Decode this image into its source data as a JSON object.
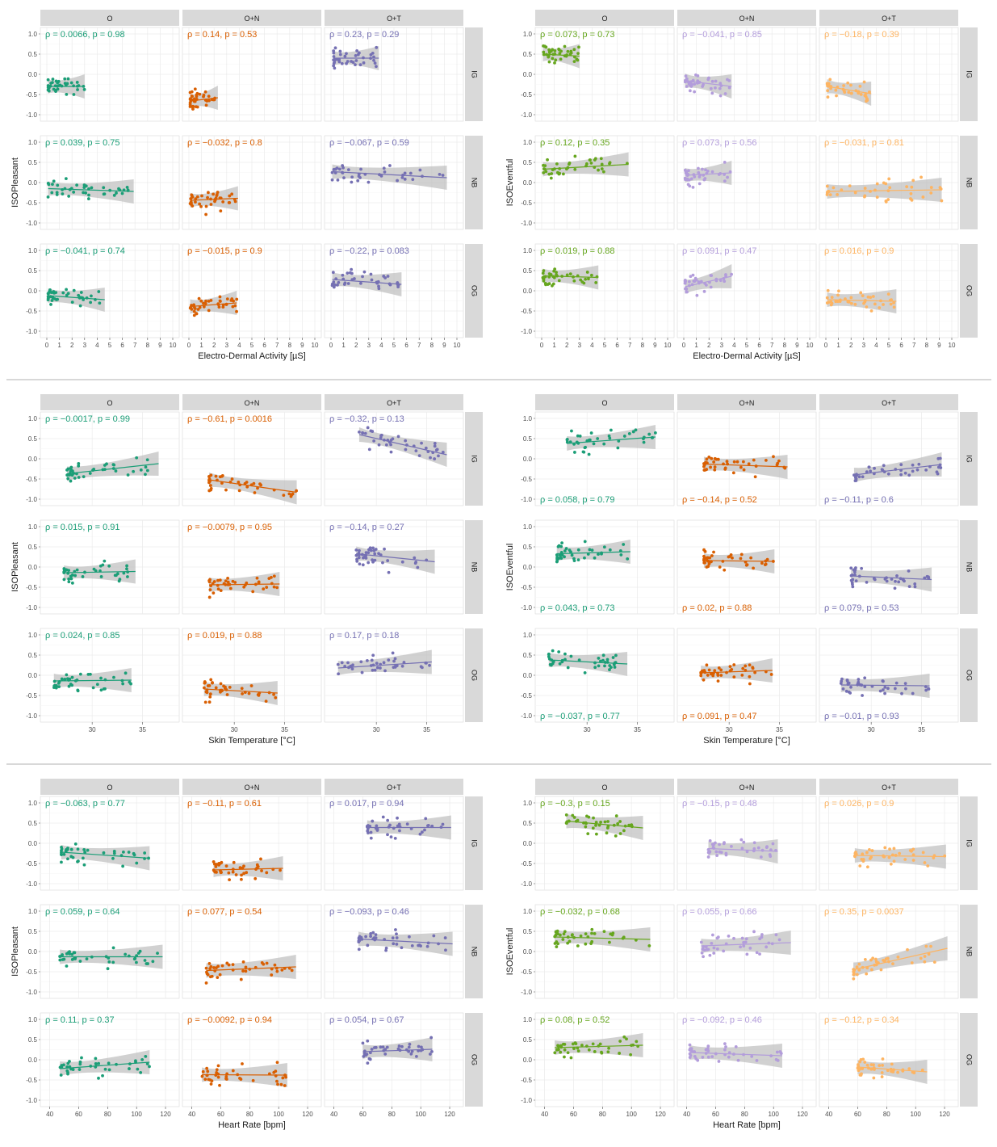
{
  "strip_columns": [
    "O",
    "O+N",
    "O+T"
  ],
  "strip_rows": [
    "IG",
    "NB",
    "OG"
  ],
  "panel_names": [
    "eda-pleasant",
    "eda-eventful",
    "temp-pleasant",
    "temp-eventful",
    "hr-pleasant",
    "hr-eventful"
  ],
  "colors": {
    "pleasant": [
      "#1b9e77",
      "#d95f02",
      "#7570b3"
    ],
    "eventful_eda": [
      "#66a61e",
      "#b39ddb",
      "#fdb462"
    ],
    "eventful_temp": [
      "#1b9e77",
      "#d95f02",
      "#7570b3"
    ],
    "eventful_hr": [
      "#66a61e",
      "#b39ddb",
      "#fdb462"
    ],
    "strip_bg": "#d9d9d9",
    "band": "#bdbdbd"
  },
  "chart_data": [
    {
      "type": "scatter",
      "xlabel": "Electro-Dermal Activity [µS]",
      "ylabel": "ISOPleasant",
      "xlim": [
        0,
        10
      ],
      "xticks": [
        0,
        1,
        2,
        3,
        4,
        5,
        6,
        7,
        8,
        9,
        10
      ],
      "ylim": [
        -1,
        1
      ],
      "yticks": [
        "1.0",
        "0.5",
        "0.0",
        "-0.5",
        "-1.0"
      ],
      "annot_pos": "top",
      "stats": [
        [
          "ρ = 0.0066, p = 0.98",
          "ρ = 0.14, p = 0.53",
          "ρ = 0.23, p = 0.29"
        ],
        [
          "ρ = 0.039, p = 0.75",
          "ρ = −0.032, p = 0.8",
          "ρ = −0.067, p = 0.59"
        ],
        [
          "ρ = −0.041, p = 0.74",
          "ρ = −0.015, p = 0.9",
          "ρ = −0.22, p = 0.083"
        ]
      ],
      "fits": [
        [
          [
            0.1,
            -0.3,
            3.0,
            -0.3
          ],
          [
            0.1,
            -0.66,
            2.3,
            -0.58
          ],
          [
            0.2,
            0.4,
            3.8,
            0.4
          ]
        ],
        [
          [
            0.1,
            -0.15,
            6.9,
            -0.22
          ],
          [
            0.1,
            -0.44,
            3.9,
            -0.39
          ],
          [
            0.1,
            0.27,
            9.2,
            0.12
          ]
        ],
        [
          [
            0.1,
            -0.12,
            4.6,
            -0.22
          ],
          [
            0.1,
            -0.39,
            3.8,
            -0.3
          ],
          [
            0.1,
            0.28,
            5.6,
            0.16
          ]
        ]
      ]
    },
    {
      "type": "scatter",
      "xlabel": "Electro-Dermal Activity [µS]",
      "ylabel": "ISOEventful",
      "xlim": [
        0,
        10
      ],
      "xticks": [
        0,
        1,
        2,
        3,
        4,
        5,
        6,
        7,
        8,
        9,
        10
      ],
      "ylim": [
        -1,
        1
      ],
      "yticks": [
        "1.0",
        "0.5",
        "0.0",
        "-0.5",
        "-1.0"
      ],
      "annot_pos": "top",
      "stats": [
        [
          "ρ = 0.073, p = 0.73",
          "ρ = −0.041, p = 0.85",
          "ρ = −0.18, p = 0.39"
        ],
        [
          "ρ = 0.12, p = 0.35",
          "ρ = 0.073, p = 0.56",
          "ρ = −0.031, p = 0.81"
        ],
        [
          "ρ = 0.019, p = 0.88",
          "ρ = 0.091, p = 0.47",
          "ρ = 0.016, p = 0.9"
        ]
      ],
      "fits": [
        [
          [
            0.1,
            0.5,
            3.0,
            0.45
          ],
          [
            0.1,
            -0.16,
            3.8,
            -0.3
          ],
          [
            0.1,
            -0.3,
            3.6,
            -0.48
          ]
        ],
        [
          [
            0.1,
            0.33,
            6.9,
            0.45
          ],
          [
            0.1,
            0.18,
            3.8,
            0.24
          ],
          [
            0.1,
            -0.22,
            9.2,
            -0.18
          ]
        ],
        [
          [
            0.1,
            0.37,
            4.5,
            0.33
          ],
          [
            0.1,
            0.1,
            3.8,
            0.36
          ],
          [
            0.1,
            -0.22,
            5.6,
            -0.26
          ]
        ]
      ]
    },
    {
      "type": "scatter",
      "xlabel": "Skin Temperature [°C]",
      "ylabel": "ISOPleasant",
      "xlim": [
        25.5,
        38
      ],
      "xticks": [
        30,
        35
      ],
      "ylim": [
        -1,
        1
      ],
      "yticks": [
        "1.0",
        "0.5",
        "0.0",
        "-0.5",
        "-1.0"
      ],
      "annot_pos": "top",
      "stats": [
        [
          "ρ = −0.0017, p = 0.99",
          "ρ = −0.61, p = 0.0016",
          "ρ = −0.32, p = 0.13"
        ],
        [
          "ρ = 0.015, p = 0.91",
          "ρ = −0.0079, p = 0.95",
          "ρ = −0.14, p = 0.27"
        ],
        [
          "ρ = 0.024, p = 0.85",
          "ρ = 0.019, p = 0.88",
          "ρ = 0.17, p = 0.18"
        ]
      ],
      "fits": [
        [
          [
            27.5,
            -0.37,
            36.6,
            -0.12
          ],
          [
            27.5,
            -0.52,
            36.2,
            -0.83
          ],
          [
            28.3,
            0.6,
            37.0,
            0.1
          ]
        ],
        [
          [
            27.2,
            -0.14,
            34.3,
            -0.11
          ],
          [
            27.5,
            -0.44,
            34.5,
            -0.42
          ],
          [
            28.0,
            0.33,
            35.8,
            0.13
          ]
        ],
        [
          [
            26.2,
            -0.14,
            33.9,
            -0.12
          ],
          [
            27.0,
            -0.34,
            34.3,
            -0.44
          ],
          [
            26.2,
            0.18,
            35.5,
            0.33
          ]
        ]
      ]
    },
    {
      "type": "scatter",
      "xlabel": "Skin Temperature [°C]",
      "ylabel": "ISOEventful",
      "xlim": [
        25.5,
        38
      ],
      "xticks": [
        30,
        35
      ],
      "ylim": [
        -1,
        1
      ],
      "yticks": [
        "1.0",
        "0.5",
        "0.0",
        "-0.5",
        "-1.0"
      ],
      "annot_pos": "bottom",
      "stats": [
        [
          "ρ = 0.058, p = 0.79",
          "ρ = −0.14, p = 0.52",
          "ρ = −0.11, p = 0.6"
        ],
        [
          "ρ = 0.043, p = 0.73",
          "ρ = 0.02, p = 0.88",
          "ρ = 0.079, p = 0.53"
        ],
        [
          "ρ = −0.037, p = 0.77",
          "ρ = 0.091, p = 0.47",
          "ρ = −0.01, p = 0.93"
        ]
      ],
      "fits": [
        [
          [
            28.0,
            0.38,
            36.8,
            0.54
          ],
          [
            27.5,
            -0.13,
            35.8,
            -0.2
          ],
          [
            28.3,
            -0.4,
            37.0,
            -0.14
          ]
        ],
        [
          [
            27.0,
            0.33,
            34.3,
            0.38
          ],
          [
            27.5,
            0.16,
            34.5,
            0.14
          ],
          [
            28.0,
            -0.22,
            36.0,
            -0.31
          ]
        ],
        [
          [
            26.2,
            0.38,
            34.0,
            0.28
          ],
          [
            27.2,
            0.06,
            34.3,
            0.12
          ],
          [
            27.0,
            -0.24,
            35.8,
            -0.26
          ]
        ]
      ]
    },
    {
      "type": "scatter",
      "xlabel": "Heart Rate [bpm]",
      "ylabel": "ISOPleasant",
      "xlim": [
        38,
        125
      ],
      "xticks": [
        40,
        60,
        80,
        100,
        120
      ],
      "ylim": [
        -1,
        1
      ],
      "yticks": [
        "1.0",
        "0.5",
        "0.0",
        "-0.5",
        "-1.0"
      ],
      "annot_pos": "top",
      "stats": [
        [
          "ρ = −0.063, p = 0.77",
          "ρ = −0.11, p = 0.61",
          "ρ = 0.017, p = 0.94"
        ],
        [
          "ρ = 0.059, p = 0.64",
          "ρ = 0.077, p = 0.54",
          "ρ = −0.093, p = 0.46"
        ],
        [
          "ρ = 0.11, p = 0.37",
          "ρ = −0.0092, p = 0.94",
          "ρ = 0.054, p = 0.67"
        ]
      ],
      "fits": [
        [
          [
            48,
            -0.22,
            109,
            -0.37
          ],
          [
            55,
            -0.66,
            103,
            -0.62
          ],
          [
            63,
            0.39,
            121,
            0.39
          ]
        ],
        [
          [
            47,
            -0.13,
            118,
            -0.13
          ],
          [
            50,
            -0.47,
            112,
            -0.38
          ],
          [
            57,
            0.31,
            122,
            0.19
          ]
        ],
        [
          [
            47,
            -0.22,
            109,
            -0.06
          ],
          [
            47,
            -0.37,
            106,
            -0.38
          ],
          [
            60,
            0.2,
            108,
            0.26
          ]
        ]
      ]
    },
    {
      "type": "scatter",
      "xlabel": "Heart Rate [bpm]",
      "ylabel": "ISOEventful",
      "xlim": [
        38,
        125
      ],
      "xticks": [
        40,
        60,
        80,
        100,
        120
      ],
      "ylim": [
        -1,
        1
      ],
      "yticks": [
        "1.0",
        "0.5",
        "0.0",
        "-0.5",
        "-1.0"
      ],
      "annot_pos": "top",
      "stats": [
        [
          "ρ = −0.3, p = 0.15",
          "ρ = −0.15, p = 0.48",
          "ρ = 0.026, p = 0.9"
        ],
        [
          "ρ = −0.032, p = 0.68",
          "ρ = 0.055, p = 0.66",
          "ρ = 0.35, p = 0.0037"
        ],
        [
          "ρ = 0.08, p = 0.52",
          "ρ = −0.092, p = 0.46",
          "ρ = −0.12, p = 0.34"
        ]
      ],
      "fits": [
        [
          [
            55,
            0.55,
            108,
            0.38
          ],
          [
            55,
            -0.13,
            103,
            -0.2
          ],
          [
            58,
            -0.3,
            121,
            -0.33
          ]
        ],
        [
          [
            47,
            0.36,
            113,
            0.3
          ],
          [
            50,
            0.14,
            112,
            0.22
          ],
          [
            57,
            -0.45,
            122,
            0.08
          ]
        ],
        [
          [
            47,
            0.3,
            108,
            0.36
          ],
          [
            42,
            0.18,
            106,
            0.1
          ],
          [
            60,
            -0.18,
            108,
            -0.3
          ]
        ]
      ]
    }
  ]
}
